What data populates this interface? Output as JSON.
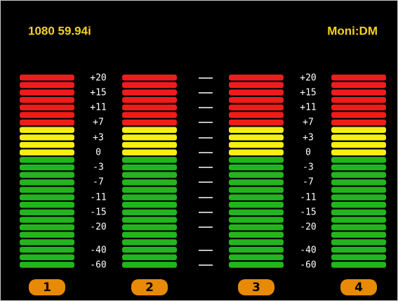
{
  "header": {
    "format": "1080 59.94i",
    "monitor": "Moni:DM"
  },
  "scale": [
    "+20",
    "+15",
    "+11",
    "+7",
    "+3",
    "0",
    "-3",
    "-7",
    "-11",
    "-15",
    "-20",
    "-40",
    "-60"
  ],
  "channels": [
    "1",
    "2",
    "3",
    "4"
  ]
}
